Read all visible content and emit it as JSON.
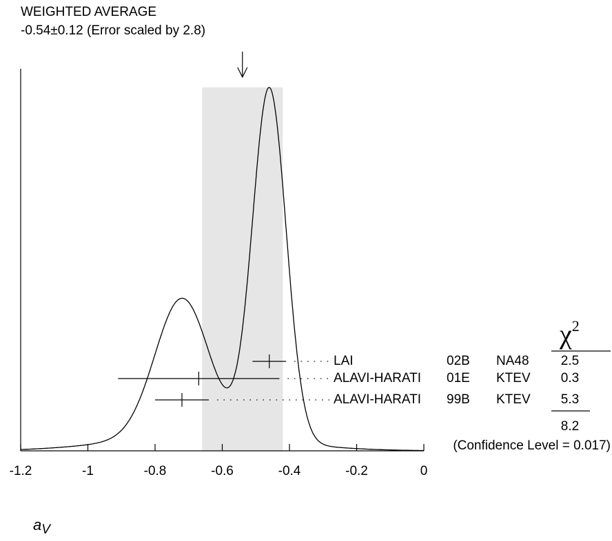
{
  "chart_data": {
    "type": "ideogram",
    "title": "WEIGHTED AVERAGE",
    "subtitle": "-0.54±0.12 (Error scaled by 2.8)",
    "average": -0.54,
    "average_error": 0.12,
    "band_color": "#e6e6e6",
    "x_label": {
      "base": "a",
      "subscript": "V"
    },
    "chi2_header": {
      "symbol": "χ",
      "superscript": "2"
    },
    "measurements": [
      {
        "author": "LAI",
        "year": "02B",
        "experiment": "NA48",
        "value": -0.46,
        "error": 0.05,
        "chi2": 2.5
      },
      {
        "author": "ALAVI-HARATI",
        "year": "01E",
        "experiment": "KTEV",
        "value": -0.67,
        "error": 0.24,
        "chi2": 0.3
      },
      {
        "author": "ALAVI-HARATI",
        "year": "99B",
        "experiment": "KTEV",
        "value": -0.72,
        "error": 0.08,
        "chi2": 5.3
      }
    ],
    "chi2_total": 8.2,
    "confidence_label": "(Confidence Level = 0.017)",
    "xlim": [
      -1.2,
      0
    ],
    "xticks": [
      -1.2,
      -1,
      -0.8,
      -0.6,
      -0.4,
      -0.2,
      0
    ]
  }
}
